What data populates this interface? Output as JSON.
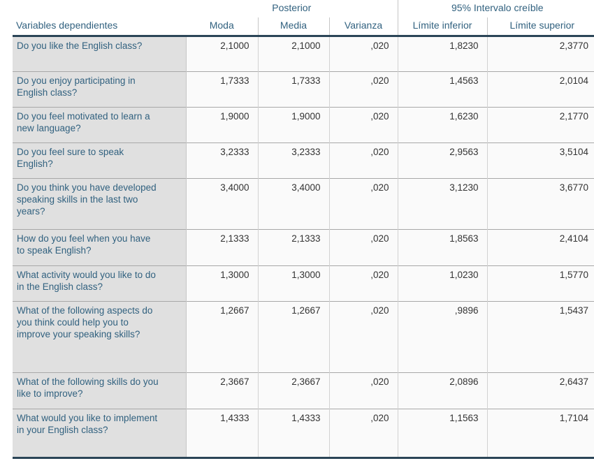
{
  "table": {
    "row_header_label": "Variables dependientes",
    "groups": [
      {
        "label": "Posterior",
        "span": 3
      },
      {
        "label": "95% Intervalo creíble",
        "span": 2
      }
    ],
    "columns": [
      "Moda",
      "Media",
      "Varianza",
      "Límite inferior",
      "Límite superior"
    ],
    "column_keys": [
      "moda",
      "media",
      "varianza",
      "limite-inferior",
      "limite-superior"
    ],
    "rows": [
      {
        "label": "Do you like the English class?",
        "values": [
          "2,1000",
          "2,1000",
          ",020",
          "1,8230",
          "2,3770"
        ]
      },
      {
        "label": "Do you enjoy participating in English class?",
        "values": [
          "1,7333",
          "1,7333",
          ",020",
          "1,4563",
          "2,0104"
        ]
      },
      {
        "label": "Do you feel motivated to learn a new language?",
        "values": [
          "1,9000",
          "1,9000",
          ",020",
          "1,6230",
          "2,1770"
        ]
      },
      {
        "label": "Do you feel sure to speak English?",
        "values": [
          "3,2333",
          "3,2333",
          ",020",
          "2,9563",
          "3,5104"
        ]
      },
      {
        "label": "Do you think you have developed speaking skills in the last two years?",
        "values": [
          "3,4000",
          "3,4000",
          ",020",
          "3,1230",
          "3,6770"
        ]
      },
      {
        "label": "How do you feel when you have to speak English?",
        "values": [
          "2,1333",
          "2,1333",
          ",020",
          "1,8563",
          "2,4104"
        ]
      },
      {
        "label": "What activity would you like to do in the English class?",
        "values": [
          "1,3000",
          "1,3000",
          ",020",
          "1,0230",
          "1,5770"
        ]
      },
      {
        "label": "What of the following aspects do you think could help you to improve your speaking skills?",
        "values": [
          "1,2667",
          "1,2667",
          ",020",
          ",9896",
          "1,5437"
        ]
      },
      {
        "label": "What of the following skills do you like to improve?",
        "values": [
          "2,3667",
          "2,3667",
          ",020",
          "2,0896",
          "2,6437"
        ]
      },
      {
        "label": "What would you like to implement in your English class?",
        "values": [
          "1,4333",
          "1,4333",
          ",020",
          "1,1563",
          "1,7104"
        ]
      }
    ]
  },
  "colors": {
    "header_text": "#31617f",
    "label_background": "#e0e0e0",
    "value_background": "#fafafa",
    "value_text": "#333333",
    "thick_rule": "#2b4557",
    "thin_rule": "#a8a8a8"
  }
}
